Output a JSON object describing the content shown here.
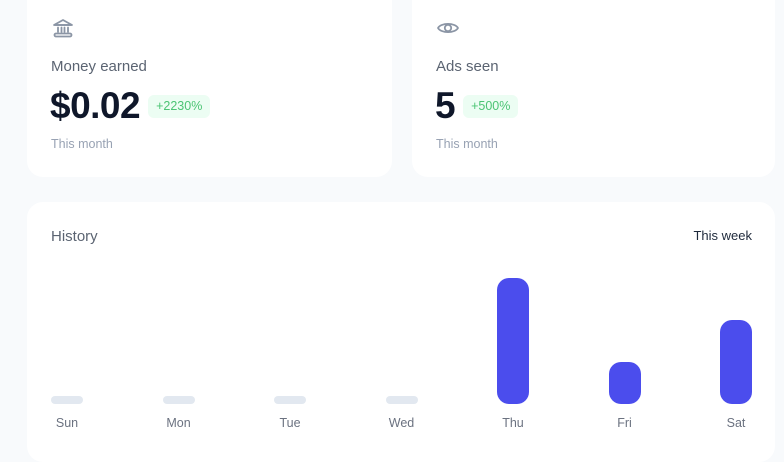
{
  "stats": [
    {
      "icon": "bank-icon",
      "label": "Money earned",
      "value": "$0.02",
      "change": "+2230%",
      "period": "This month"
    },
    {
      "icon": "eye-icon",
      "label": "Ads seen",
      "value": "5",
      "change": "+500%",
      "period": "This month"
    }
  ],
  "history": {
    "title": "History",
    "range": "This week"
  },
  "colors": {
    "bar": "#4b4ded",
    "bar_empty": "#e2e8f0",
    "badge_bg": "#ecfdf3",
    "badge_text": "#4cc474"
  },
  "chart_data": {
    "type": "bar",
    "title": "History",
    "subtitle": "This week",
    "categories": [
      "Sun",
      "Mon",
      "Tue",
      "Wed",
      "Thu",
      "Fri",
      "Sat"
    ],
    "values": [
      0,
      0,
      0,
      0,
      3,
      1,
      2
    ],
    "xlabel": "",
    "ylabel": "",
    "grid": false,
    "legend": null
  }
}
